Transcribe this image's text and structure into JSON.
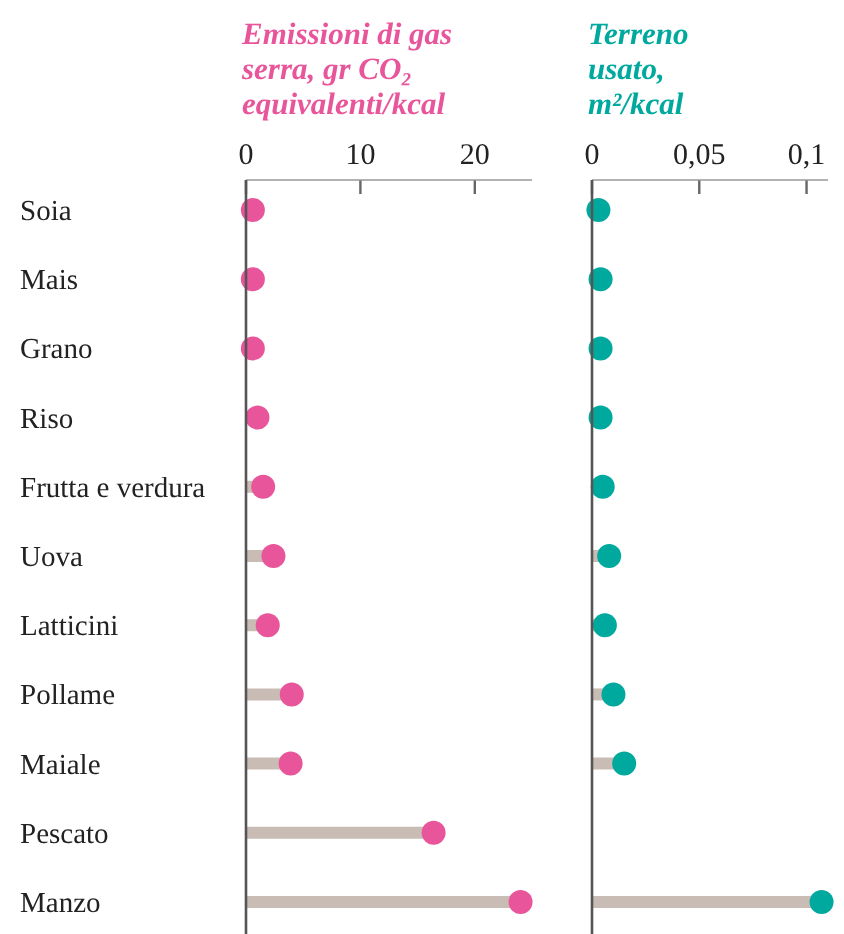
{
  "chart_data": [
    {
      "type": "lollipop",
      "orientation": "horizontal",
      "title": "Emissioni di gas serra, gr CO₂ equivalenti/kcal",
      "categories": [
        "Soia",
        "Mais",
        "Grano",
        "Riso",
        "Frutta e verdura",
        "Uova",
        "Latticini",
        "Pollame",
        "Maiale",
        "Pescato",
        "Manzo"
      ],
      "values": [
        0.6,
        0.6,
        0.6,
        1.0,
        1.5,
        2.4,
        1.9,
        4.0,
        3.9,
        16.4,
        24.0
      ],
      "color": "#e8559a",
      "xlim": [
        0,
        25
      ],
      "xticks": [
        0,
        10,
        20
      ]
    },
    {
      "type": "lollipop",
      "orientation": "horizontal",
      "title": "Terreno usato, m²/kcal",
      "categories": [
        null,
        null,
        null,
        null,
        null,
        null,
        null,
        null,
        null,
        null,
        null
      ],
      "values": [
        0.003,
        0.004,
        0.004,
        0.004,
        0.005,
        0.008,
        0.006,
        0.01,
        0.015,
        null,
        0.107
      ],
      "color": "#00a99d",
      "xlim": [
        0,
        0.11
      ],
      "xticks": [
        0,
        {
          "value": 0.05,
          "label": "0,05"
        },
        {
          "value": 0.1,
          "label": "0,1"
        }
      ],
      "tick_labels": "x"
    }
  ]
}
